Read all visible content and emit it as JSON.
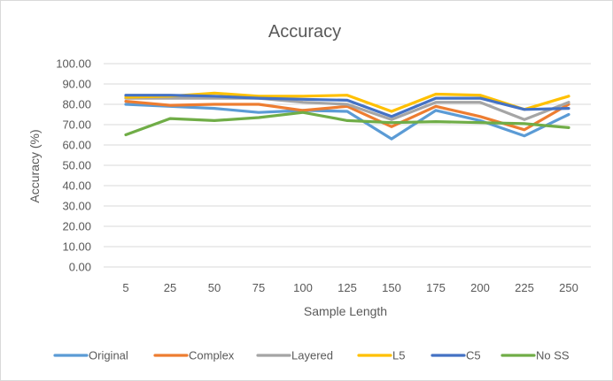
{
  "chart_data": {
    "type": "line",
    "title": "Accuracy",
    "xlabel": "Sample Length",
    "ylabel": "Accuracy (%)",
    "ylim": [
      0,
      100
    ],
    "y_ticks": [
      "0.00",
      "10.00",
      "20.00",
      "30.00",
      "40.00",
      "50.00",
      "60.00",
      "70.00",
      "80.00",
      "90.00",
      "100.00"
    ],
    "categories": [
      "5",
      "25",
      "50",
      "75",
      "100",
      "125",
      "150",
      "175",
      "200",
      "225",
      "250"
    ],
    "grid": true,
    "legend_position": "bottom",
    "series": [
      {
        "name": "Original",
        "color": "#5b9bd5",
        "values": [
          80.0,
          79.0,
          78.0,
          76.0,
          77.0,
          76.5,
          63.0,
          77.0,
          72.0,
          64.5,
          75.0
        ]
      },
      {
        "name": "Complex",
        "color": "#ed7d31",
        "values": [
          81.5,
          79.5,
          80.0,
          80.0,
          77.0,
          79.0,
          69.0,
          79.0,
          74.0,
          67.5,
          80.0
        ]
      },
      {
        "name": "Layered",
        "color": "#a5a5a5",
        "values": [
          83.0,
          83.0,
          83.0,
          83.0,
          81.0,
          80.0,
          72.5,
          81.0,
          81.0,
          72.5,
          81.0
        ]
      },
      {
        "name": "L5",
        "color": "#ffc000",
        "values": [
          83.5,
          84.0,
          85.5,
          84.0,
          84.0,
          84.5,
          76.5,
          85.0,
          84.5,
          77.5,
          84.0
        ]
      },
      {
        "name": "C5",
        "color": "#4472c4",
        "values": [
          84.5,
          84.5,
          84.0,
          83.0,
          82.5,
          82.0,
          74.0,
          83.0,
          83.0,
          77.5,
          78.0
        ]
      },
      {
        "name": "No SS",
        "color": "#70ad47",
        "values": [
          65.0,
          73.0,
          72.0,
          73.5,
          76.0,
          72.0,
          71.0,
          71.5,
          71.0,
          70.5,
          68.5
        ]
      }
    ]
  }
}
